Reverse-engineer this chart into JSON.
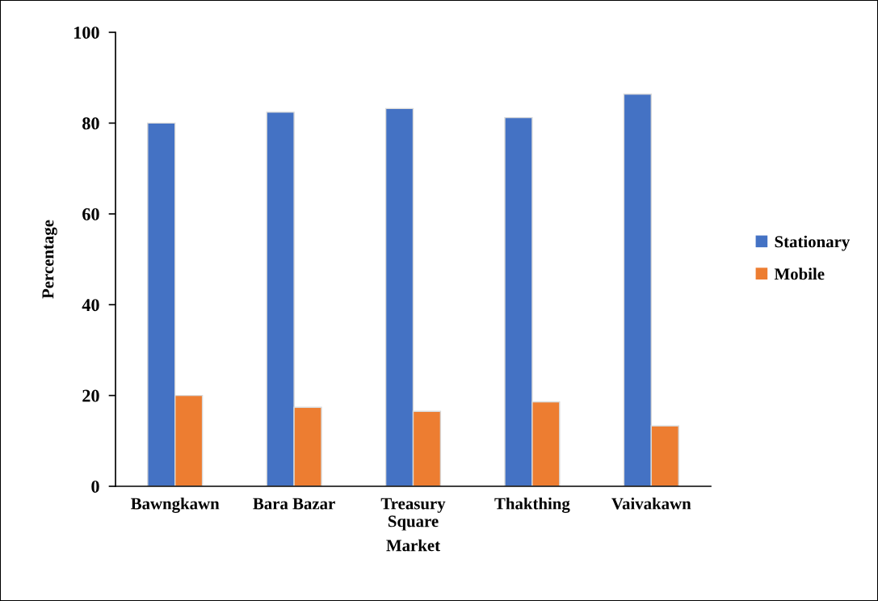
{
  "chart_data": {
    "type": "bar",
    "xlabel": "Market",
    "ylabel": "Percentage",
    "categories": [
      "Bawngkawn",
      "Bara Bazar",
      "Treasury\nSquare",
      "Thakthing",
      "Vaivakawn"
    ],
    "series": [
      {
        "name": "Stationary",
        "color": "#4472c4",
        "values": [
          80.0,
          82.4,
          83.2,
          81.2,
          86.4
        ]
      },
      {
        "name": "Mobile",
        "color": "#ed7d31",
        "values": [
          20.0,
          17.4,
          16.5,
          18.6,
          13.3
        ]
      }
    ],
    "ylim": [
      0,
      100
    ],
    "yticks": [
      0,
      20,
      40,
      60,
      80,
      100
    ],
    "grid": false,
    "legend": "right"
  }
}
